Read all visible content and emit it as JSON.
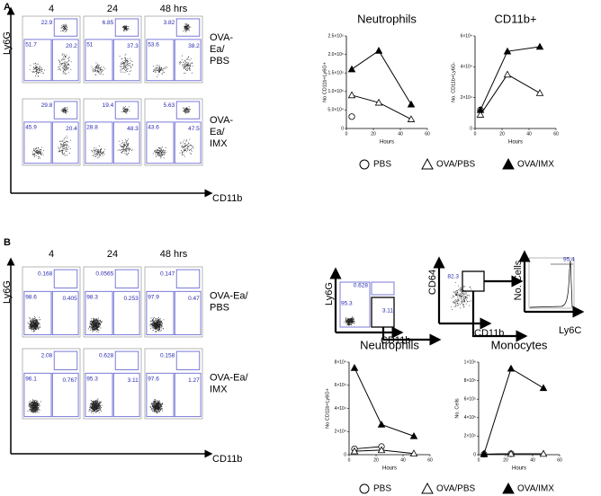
{
  "panels": [
    "A",
    "B"
  ],
  "flow_a": {
    "columns": [
      "4",
      "24",
      "48 hrs"
    ],
    "y_axis": "Ly6G",
    "x_axis": "CD11b",
    "rows": [
      {
        "label_lines": [
          "OVA-",
          "Ea/",
          "PBS"
        ],
        "plots": [
          [
            "22.9",
            "51.7",
            "20.2"
          ],
          [
            "6.85",
            "51",
            "37.3"
          ],
          [
            "3.82",
            "53.6",
            "38.2"
          ]
        ]
      },
      {
        "label_lines": [
          "OVA-",
          "Ea/",
          "IMX"
        ],
        "plots": [
          [
            "29.8",
            "45.9",
            "20.4"
          ],
          [
            "19.4",
            "28.8",
            "48.3"
          ],
          [
            "5.63",
            "43.6",
            "47.5"
          ]
        ]
      }
    ]
  },
  "flow_b": {
    "columns": [
      "4",
      "24",
      "48 hrs"
    ],
    "y_axis": "Ly6G",
    "x_axis": "CD11b",
    "rows": [
      {
        "label_lines": [
          "OVA-Ea/",
          "PBS"
        ],
        "plots": [
          [
            "0.168",
            "98.6",
            "0.405"
          ],
          [
            "0.0565",
            "98.3",
            "0.253"
          ],
          [
            "0.147",
            "97.9",
            "0.47"
          ]
        ]
      },
      {
        "label_lines": [
          "OVA-Ea/",
          "IMX"
        ],
        "plots": [
          [
            "2.08",
            "96.1",
            "0.767"
          ],
          [
            "0.628",
            "95.3",
            "3.11"
          ],
          [
            "0.158",
            "97.6",
            "1.27"
          ]
        ]
      }
    ]
  },
  "gating": {
    "plots": [
      {
        "y_label": "Ly6G",
        "x_label": "CD11b",
        "gates": [
          "0.628",
          "95.3",
          "3.11"
        ]
      },
      {
        "y_label": "CD64",
        "x_label": "CD11b",
        "gates": [
          "82.3"
        ]
      },
      {
        "y_label": "No. Cells",
        "x_label": "Ly6C",
        "gates": [
          "95.4"
        ]
      }
    ]
  },
  "chart_data": [
    {
      "type": "line",
      "title": "Neutrophils",
      "x_label": "Hours",
      "y_label": "No CD11b+Ly6G+",
      "x": [
        4,
        24,
        48
      ],
      "xlim": [
        0,
        60
      ],
      "xticks": [
        0,
        20,
        40,
        60
      ],
      "ylim": [
        0,
        250000
      ],
      "yticks": [
        0,
        {
          "value": 50000,
          "label": "5.0×10⁴"
        },
        {
          "value": 100000,
          "label": "1.0×10⁵"
        },
        {
          "value": 150000,
          "label": "1.5×10⁵"
        },
        {
          "value": 200000,
          "label": "2.0×10⁵"
        },
        {
          "value": 250000,
          "label": "2.5×10⁵"
        }
      ],
      "series": [
        {
          "name": "PBS",
          "marker": "circle",
          "color": "#000000",
          "values": [
            32000,
            null,
            null
          ]
        },
        {
          "name": "OVA/PBS",
          "marker": "triangle-open",
          "color": "#000000",
          "values": [
            90000,
            70000,
            25000
          ]
        },
        {
          "name": "OVA/IMX",
          "marker": "triangle",
          "color": "#000000",
          "values": [
            160000,
            210000,
            65000
          ]
        }
      ]
    },
    {
      "type": "line",
      "title": "CD11b+",
      "x_label": "Hours",
      "y_label": "No. CD11b+Ly6G-",
      "x": [
        4,
        24,
        48
      ],
      "xlim": [
        0,
        60
      ],
      "xticks": [
        0,
        20,
        40,
        60
      ],
      "ylim": [
        0,
        60000
      ],
      "yticks": [
        0,
        {
          "value": 20000,
          "label": "2×10⁴"
        },
        {
          "value": 40000,
          "label": "4×10⁴"
        },
        {
          "value": 60000,
          "label": "6×10⁴"
        }
      ],
      "series": [
        {
          "name": "PBS",
          "marker": "circle",
          "color": "#000000",
          "values": [
            12000,
            null,
            null
          ]
        },
        {
          "name": "OVA/PBS",
          "marker": "triangle-open",
          "color": "#000000",
          "values": [
            9000,
            35000,
            23000
          ]
        },
        {
          "name": "OVA/IMX",
          "marker": "triangle",
          "color": "#000000",
          "values": [
            12000,
            50000,
            53000
          ]
        }
      ]
    },
    {
      "type": "line",
      "title": "Neutrophils",
      "x_label": "Hours",
      "y_label": "No CD11b+Ly6G+",
      "x": [
        4,
        24,
        48
      ],
      "xlim": [
        0,
        60
      ],
      "xticks": [
        0,
        20,
        40,
        60
      ],
      "ylim": [
        0,
        80000
      ],
      "yticks": [
        0,
        {
          "value": 20000,
          "label": "2×10⁴"
        },
        {
          "value": 40000,
          "label": "4×10⁴"
        },
        {
          "value": 60000,
          "label": "6×10⁴"
        },
        {
          "value": 80000,
          "label": "8×10⁴"
        }
      ],
      "series": [
        {
          "name": "PBS",
          "marker": "circle",
          "color": "#000000",
          "values": [
            5000,
            7000,
            null
          ]
        },
        {
          "name": "OVA/PBS",
          "marker": "triangle-open",
          "color": "#000000",
          "values": [
            3000,
            4000,
            1000
          ]
        },
        {
          "name": "OVA/IMX",
          "marker": "triangle",
          "color": "#000000",
          "values": [
            75000,
            26000,
            16000
          ]
        }
      ]
    },
    {
      "type": "line",
      "title": "Monocytes",
      "x_label": "Hours",
      "y_label": "No. Cells",
      "x": [
        4,
        24,
        48
      ],
      "xlim": [
        0,
        60
      ],
      "xticks": [
        0,
        20,
        40,
        60
      ],
      "ylim": [
        0,
        1000000
      ],
      "yticks": [
        0,
        {
          "value": 200000,
          "label": "2×10⁵"
        },
        {
          "value": 400000,
          "label": "4×10⁵"
        },
        {
          "value": 600000,
          "label": "6×10⁵"
        },
        {
          "value": 800000,
          "label": "8×10⁵"
        },
        {
          "value": 1000000,
          "label": "1×10⁶"
        }
      ],
      "series": [
        {
          "name": "PBS",
          "marker": "circle",
          "color": "#000000",
          "values": [
            5000,
            10000,
            null
          ]
        },
        {
          "name": "OVA/PBS",
          "marker": "triangle-open",
          "color": "#000000",
          "values": [
            5000,
            10000,
            10000
          ]
        },
        {
          "name": "OVA/IMX",
          "marker": "triangle",
          "color": "#000000",
          "values": [
            10000,
            930000,
            720000
          ]
        }
      ]
    }
  ]
}
